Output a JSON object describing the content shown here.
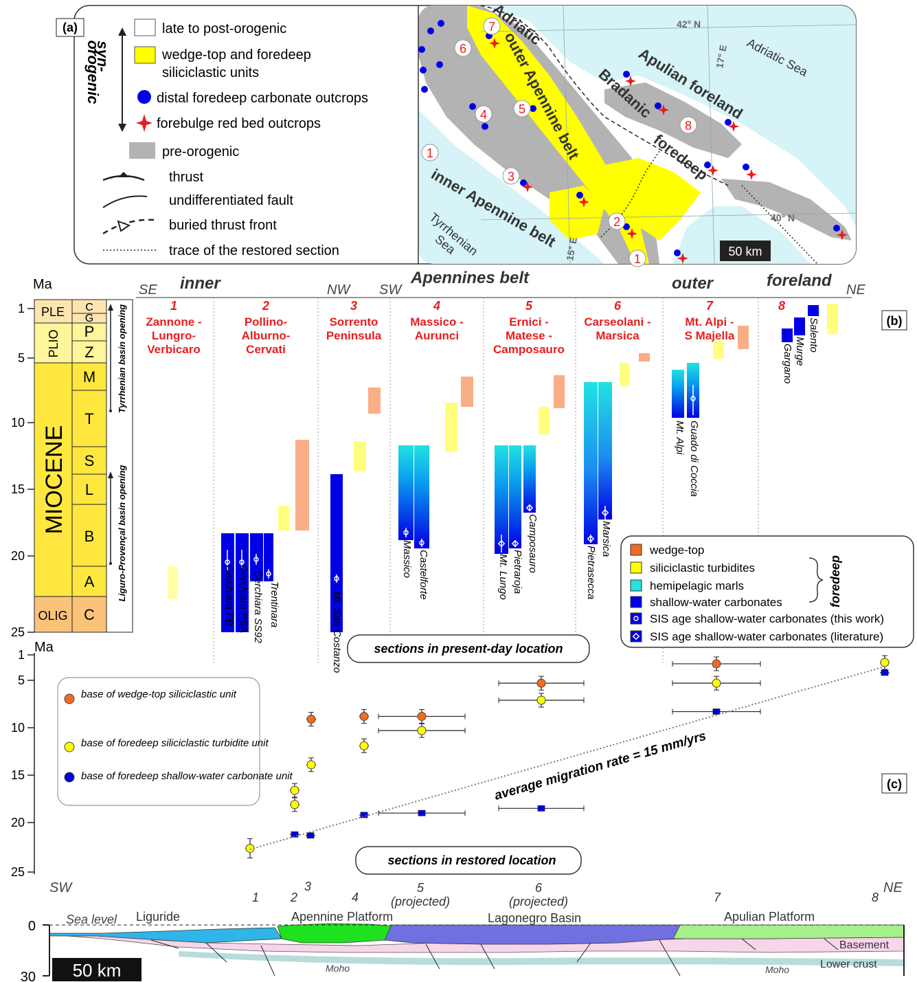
{
  "colors": {
    "sea": "#d6f3f7",
    "land": "#ffffff",
    "pre": "#b3b3b3",
    "yellow": "#ffff00",
    "blue": "#0000e6",
    "red": "#e61e1e",
    "orange": "#f26b21",
    "cyan": "#22e2e2",
    "pink": "#f7d5ea",
    "green": "#a4f08a",
    "brightgreen": "#1fe21f",
    "lightblue": "#30b5e8",
    "violet": "#7070e0",
    "crust": "#b8dcdc"
  },
  "panel_a": {
    "tag": "(a)",
    "syn": "syn-",
    "orogenic": "orogenic",
    "legend": [
      "late to post-orogenic",
      "wedge-top and foredeep",
      "siliciclastic units",
      "distal foredeep carbonate outcrops",
      "forebulge red bed outcrops",
      "pre-orogenic",
      "thrust",
      "undifferentiated fault",
      "buried thrust front",
      "trace of the restored section"
    ],
    "map": {
      "lat42": "42° N",
      "lat40": "40° N",
      "lon17": "17° E",
      "lon15": "15° E",
      "sea_adriatic": "Adriatic Sea",
      "sea_tyrr1": "Tyrrhenian",
      "sea_tyrr2": "Sea",
      "adriatic": "Adriatic",
      "bradanic": "Bradanic",
      "foredeep": "foredeep",
      "outer": "outer Apennine belt",
      "inner": "inner Apennine belt",
      "apulian": "Apulian foreland",
      "scale": "50 km",
      "sites": [
        "1",
        "2",
        "3",
        "4",
        "5",
        "6",
        "7",
        "8",
        "1"
      ]
    }
  },
  "panel_b": {
    "tag": "(b)",
    "ma": "Ma",
    "yticks": [
      "1",
      "5",
      "10",
      "15",
      "20",
      "25"
    ],
    "epochs": [
      "PLE",
      "PLIO",
      "MIOCENE",
      "OLIG"
    ],
    "stages": [
      "C",
      "G",
      "P",
      "Z",
      "M",
      "T",
      "S",
      "L",
      "B",
      "A",
      "C"
    ],
    "basin1": "Tyrrhenian basin opening",
    "basin2": "Liguro-Provençal basin opening",
    "heads": {
      "se": "SE",
      "inner": "inner",
      "nw": "NW",
      "sw": "SW",
      "belt": "Apennines belt",
      "outer": "outer",
      "foreland": "foreland",
      "ne": "NE"
    },
    "sections": [
      {
        "num": "1",
        "l1": "Zannone -",
        "l2": "Lungro-",
        "l3": "Verbicaro"
      },
      {
        "num": "2",
        "l1": "Pollino-",
        "l2": "Alburno-",
        "l3": "Cervati"
      },
      {
        "num": "3",
        "l1": "Sorrento",
        "l2": "Peninsula",
        "l3": ""
      },
      {
        "num": "4",
        "l1": "Massico -",
        "l2": "Aurunci",
        "l3": ""
      },
      {
        "num": "5",
        "l1": "Ernici -",
        "l2": "Matese -",
        "l3": "Camposauro"
      },
      {
        "num": "6",
        "l1": "Carseolani -",
        "l2": "Marsica",
        "l3": ""
      },
      {
        "num": "7",
        "l1": "Mt. Alpi -",
        "l2": "S Majella",
        "l3": ""
      },
      {
        "num": "8",
        "l1": "",
        "l2": "",
        "l3": ""
      }
    ],
    "col_labels": [
      "Cerchiara PB",
      "Cerchiara PSA",
      "Cerchiara SS92",
      "Trentinara",
      "Mt. San Costanzo",
      "Massico",
      "Castelforte",
      "Mt. Lungo",
      "Pietraroja",
      "Camposauro",
      "Pietrasecca",
      "Marsica",
      "Mt. Alpi",
      "Guado di Coccia",
      "Gargano",
      "Murge",
      "Salento"
    ],
    "legend": [
      "wedge-top",
      "siliciclastic turbidites",
      "hemipelagic marls",
      "shallow-water carbonates",
      "SIS age shallow-water carbonates (this work)",
      "SIS age shallow-water carbonates (literature)"
    ],
    "foredeep": "foredeep",
    "present": "sections in present-day location"
  },
  "panel_c": {
    "tag": "(c)",
    "ma": "Ma",
    "yticks": [
      "1",
      "5",
      "10",
      "15",
      "20",
      "25"
    ],
    "legend": [
      "base of wedge-top siliciclastic unit",
      "base of foredeep siliciclastic turbidite unit",
      "base of foredeep shallow-water carbonate unit"
    ],
    "rate": "average migration rate = 15 mm/yrs",
    "restored": "sections in restored location",
    "sw": "SW",
    "ne": "NE",
    "xlabels": [
      "1",
      "2",
      "3",
      "4",
      "5",
      "(projected)",
      "6",
      "(projected)",
      "7",
      "8"
    ]
  },
  "chart_data": {
    "type": "scatter",
    "xlabel": "",
    "ylabel": "Ma",
    "ylim": [
      25,
      1
    ],
    "series": [
      {
        "name": "base of wedge-top siliciclastic unit",
        "points": [
          [
            3,
            9.1
          ],
          [
            4,
            8.8
          ],
          [
            5,
            8.8
          ],
          [
            6,
            5.3
          ],
          [
            7,
            2.4
          ]
        ]
      },
      {
        "name": "base of foredeep siliciclastic turbidite unit",
        "points": [
          [
            1,
            22.6
          ],
          [
            2,
            16.6
          ],
          [
            2,
            18.1
          ],
          [
            3,
            13.9
          ],
          [
            4,
            11.9
          ],
          [
            5,
            10.3
          ],
          [
            6,
            7.1
          ],
          [
            7,
            5.3
          ],
          [
            8,
            2.2
          ]
        ]
      },
      {
        "name": "base of foredeep shallow-water carbonate unit",
        "points": [
          [
            2,
            21.2
          ],
          [
            3,
            21.3
          ],
          [
            4,
            19.2
          ],
          [
            5,
            19
          ],
          [
            6,
            18.5
          ],
          [
            7,
            8.3
          ],
          [
            8,
            3.8
          ]
        ]
      }
    ]
  },
  "section": {
    "zero": "0",
    "thirty": "30",
    "sea_level": "Sea level",
    "liguride": "Liguride",
    "apennine": "Apennine Platform",
    "lagonegro": "Lagonegro Basin",
    "apulian": "Apulian Platform",
    "basement": "Basement",
    "lower_crust": "Lower crust",
    "moho": "Moho",
    "scale": "50 km"
  }
}
